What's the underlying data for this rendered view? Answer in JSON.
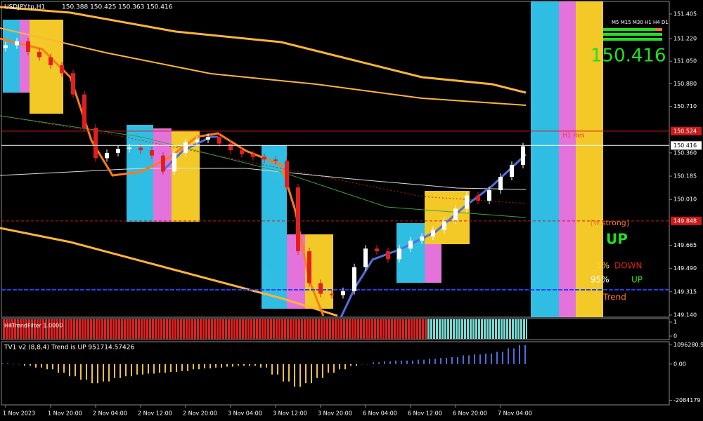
{
  "chart_data": [
    {
      "type": "candlestick",
      "title": "USDJPY.tp,H1",
      "quote": "150.388 150.425 150.363 150.416",
      "first_open": 151.15,
      "close": [
        151.17,
        151.2,
        151.12,
        151.08,
        151.02,
        150.96,
        150.8,
        150.55,
        150.32,
        150.36,
        150.39,
        150.4,
        150.38,
        150.34,
        150.22,
        150.36,
        150.44,
        150.46,
        150.48,
        150.43,
        150.38,
        150.35,
        150.33,
        150.31,
        150.3,
        150.1,
        149.62,
        149.38,
        149.3,
        149.29,
        149.32,
        149.5,
        149.64,
        149.62,
        149.56,
        149.64,
        149.7,
        149.73,
        149.78,
        149.85,
        149.94,
        150.04,
        150.0,
        150.08,
        150.18,
        150.27,
        150.41
      ],
      "up_color": "#ffffff",
      "down_color": "#e02020",
      "ylim": [
        149.124,
        151.5
      ],
      "yticks": [
        {
          "value": 151.405,
          "label": "151.405"
        },
        {
          "value": 151.22,
          "label": "151.220"
        },
        {
          "value": 151.05,
          "label": "151.050"
        },
        {
          "value": 150.88,
          "label": "150.880"
        },
        {
          "value": 150.71,
          "label": "150.710"
        },
        {
          "value": 150.36,
          "label": "150.360"
        },
        {
          "value": 150.185,
          "label": "150.185"
        },
        {
          "value": 150.01,
          "label": "150.010"
        },
        {
          "value": 149.665,
          "label": "149.665"
        },
        {
          "value": 149.49,
          "label": "149.490"
        },
        {
          "value": 149.315,
          "label": "149.315"
        },
        {
          "value": 149.14,
          "label": "149.140"
        }
      ],
      "price_markers": [
        {
          "value": 150.524,
          "label": "150.524",
          "color": "#d01818"
        },
        {
          "value": 150.416,
          "label": "150.416",
          "color": "#ffffff"
        },
        {
          "value": 149.848,
          "label": "149.848",
          "color": "#d01818"
        }
      ],
      "level_name": "H1 Res",
      "x_labels": [
        "1 Nov 2023",
        "1 Nov 20:00",
        "2 Nov 04:00",
        "2 Nov 12:00",
        "2 Nov 20:00",
        "3 Nov 04:00",
        "3 Nov 12:00",
        "3 Nov 20:00",
        "6 Nov 04:00",
        "6 Nov 12:00",
        "6 Nov 20:00",
        "7 Nov 04:00"
      ]
    },
    {
      "type": "bar",
      "title": "H4TrendFilter 1.0000",
      "ylim": [
        -0.2,
        1.2
      ],
      "yticks": [
        0,
        1
      ]
    },
    {
      "type": "bar",
      "title": "TV1 v2 (8,8,4) Trend is UP 951714.57426",
      "values": [
        50000,
        0,
        -100000,
        -200000,
        -300000,
        -500000,
        -700000,
        -900000,
        -1100000,
        -1000000,
        -800000,
        -700000,
        -600000,
        -550000,
        -500000,
        -450000,
        -400000,
        -300000,
        -250000,
        -200000,
        -150000,
        -100000,
        -100000,
        -200000,
        -600000,
        -1000000,
        -1300000,
        -1100000,
        -800000,
        -500000,
        -300000,
        -100000,
        0,
        100000,
        150000,
        200000,
        200000,
        250000,
        300000,
        350000,
        400000,
        500000,
        550000,
        600000,
        700000,
        900000,
        1090000
      ],
      "positive_color": "#4a6ee0",
      "negative_color": "#f0c040",
      "ylim": [
        -2300000,
        1200000
      ],
      "yticks": [
        1096280.9,
        {
          "value": 0,
          "label": "0.00"
        },
        -2084179
      ]
    }
  ],
  "widget": {
    "timeframes": "M5 M15 M30 H1 H4 D1",
    "price": "150.416",
    "strength": "[w.strong]",
    "signal": "UP",
    "down_pct": "5%",
    "down_label": "DOWN",
    "up_pct": "95%",
    "up_label": "UP",
    "trend_label": "Trend"
  }
}
